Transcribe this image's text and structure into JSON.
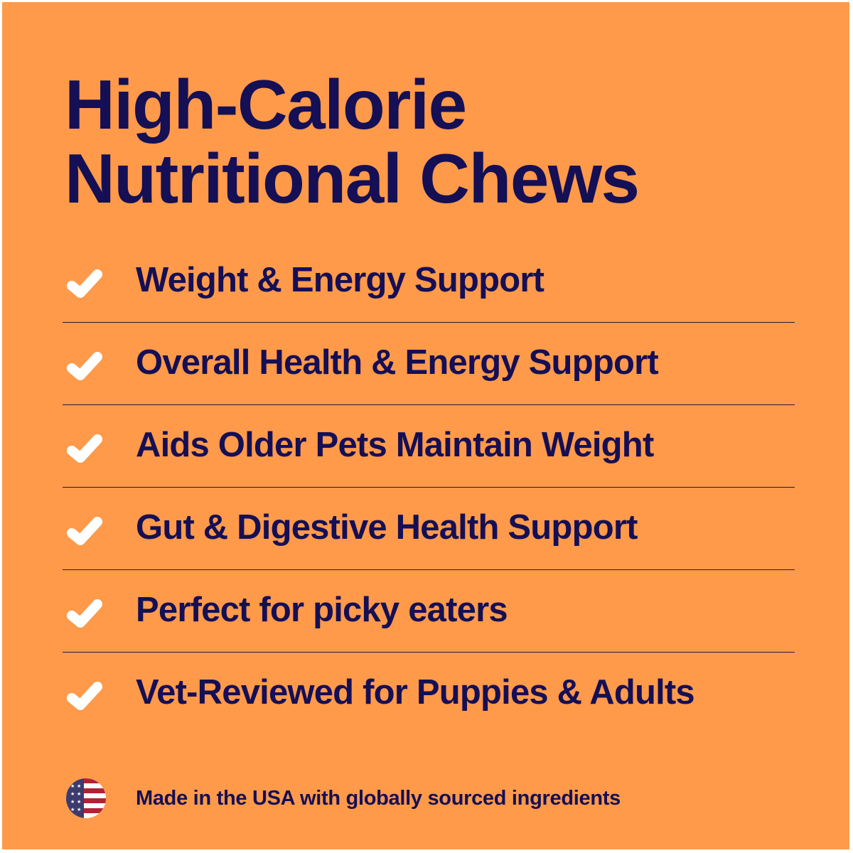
{
  "colors": {
    "background": "#FE9A4A",
    "text": "#150F55",
    "check": "#FFFFFF"
  },
  "title_lines": [
    "High-Calorie",
    "Nutritional Chews"
  ],
  "features": [
    {
      "icon": "check-icon",
      "label": "Weight & Energy Support"
    },
    {
      "icon": "check-icon",
      "label": "Overall Health & Energy Support"
    },
    {
      "icon": "check-icon",
      "label": "Aids Older Pets Maintain Weight"
    },
    {
      "icon": "check-icon",
      "label": "Gut & Digestive Health Support"
    },
    {
      "icon": "check-icon",
      "label": "Perfect for picky eaters"
    },
    {
      "icon": "check-icon",
      "label": "Vet-Reviewed for Puppies & Adults"
    }
  ],
  "footer": {
    "icon": "us-flag-icon",
    "text": "Made in the USA with globally sourced ingredients"
  }
}
